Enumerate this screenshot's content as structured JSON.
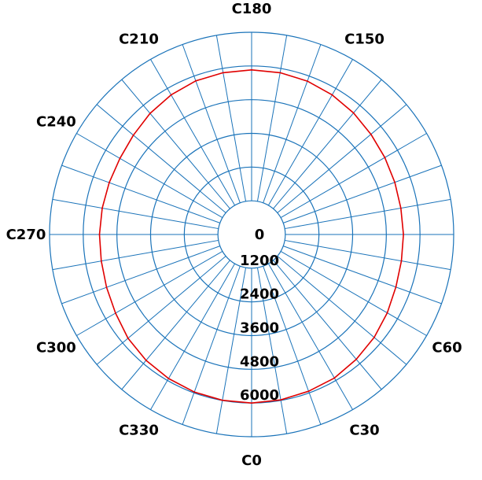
{
  "chart_data": {
    "type": "polar-line",
    "title": "",
    "angle_labels": [
      {
        "angle": 0,
        "text": "C0"
      },
      {
        "angle": 30,
        "text": "C30"
      },
      {
        "angle": 60,
        "text": "C60"
      },
      {
        "angle": 150,
        "text": "C150"
      },
      {
        "angle": 180,
        "text": "C180"
      },
      {
        "angle": 210,
        "text": "C210"
      },
      {
        "angle": 240,
        "text": "C240"
      },
      {
        "angle": 270,
        "text": "C270"
      },
      {
        "angle": 300,
        "text": "C300"
      },
      {
        "angle": 330,
        "text": "C330"
      }
    ],
    "radial_ticks": [
      {
        "value": 0,
        "text": "0"
      },
      {
        "value": 1200,
        "text": "1200"
      },
      {
        "value": 2400,
        "text": "2400"
      },
      {
        "value": 3600,
        "text": "3600"
      },
      {
        "value": 4800,
        "text": "4800"
      },
      {
        "value": 6000,
        "text": "6000"
      }
    ],
    "rlim": [
      0,
      7200
    ],
    "angle_step": 10,
    "grid": true,
    "series": [
      {
        "color": "#e00000",
        "theta": [
          0,
          10,
          20,
          30,
          40,
          50,
          60,
          70,
          80,
          90,
          100,
          110,
          120,
          130,
          140,
          150,
          160,
          170,
          180,
          190,
          200,
          210,
          220,
          230,
          240,
          250,
          260,
          270,
          280,
          290,
          300,
          310,
          320,
          330,
          340,
          350
        ],
        "r": [
          6000,
          5980,
          5940,
          5900,
          5800,
          5700,
          5580,
          5470,
          5420,
          5410,
          5400,
          5430,
          5480,
          5550,
          5650,
          5740,
          5810,
          5850,
          5860,
          5850,
          5820,
          5740,
          5630,
          5500,
          5420,
          5400,
          5405,
          5420,
          5440,
          5500,
          5600,
          5750,
          5850,
          5920,
          5970,
          5995
        ]
      }
    ],
    "colors": {
      "grid": "#1a73b9",
      "series": "#e00000"
    }
  }
}
